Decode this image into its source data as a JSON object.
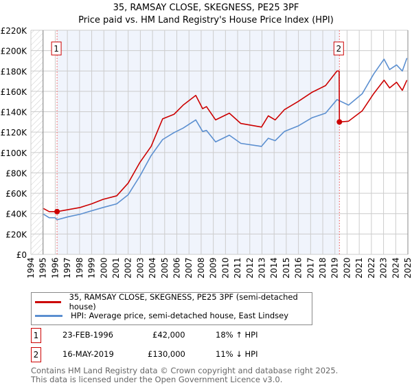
{
  "title": "35, RAMSAY CLOSE, SKEGNESS, PE25 3PF",
  "subtitle": "Price paid vs. HM Land Registry's House Price Index (HPI)",
  "chart_data": {
    "type": "line",
    "title": "35, RAMSAY CLOSE, SKEGNESS, PE25 3PF",
    "subtitle": "Price paid vs. HM Land Registry's House Price Index (HPI)",
    "xlim": [
      1994,
      2025
    ],
    "ylim": [
      0,
      220000
    ],
    "x_ticks": [
      "1994",
      "1995",
      "1996",
      "1997",
      "1998",
      "1999",
      "2000",
      "2001",
      "2002",
      "2003",
      "2004",
      "2005",
      "2006",
      "2007",
      "2008",
      "2009",
      "2010",
      "2011",
      "2012",
      "2013",
      "2014",
      "2015",
      "2016",
      "2017",
      "2018",
      "2019",
      "2020",
      "2021",
      "2022",
      "2023",
      "2024",
      "2025"
    ],
    "y_ticks": [
      {
        "value": 0,
        "label": "£0"
      },
      {
        "value": 20000,
        "label": "£20K"
      },
      {
        "value": 40000,
        "label": "£40K"
      },
      {
        "value": 60000,
        "label": "£60K"
      },
      {
        "value": 80000,
        "label": "£80K"
      },
      {
        "value": 100000,
        "label": "£100K"
      },
      {
        "value": 120000,
        "label": "£120K"
      },
      {
        "value": 140000,
        "label": "£140K"
      },
      {
        "value": 160000,
        "label": "£160K"
      },
      {
        "value": 180000,
        "label": "£180K"
      },
      {
        "value": 200000,
        "label": "£200K"
      },
      {
        "value": 220000,
        "label": "£220K"
      }
    ],
    "grid": true,
    "series": [
      {
        "name": "35, RAMSAY CLOSE, SKEGNESS, PE25 3PF (semi-detached house)",
        "color": "#cc0000",
        "x": [
          1995.04,
          1995.5,
          1996.15,
          1997.1,
          1998.05,
          1998.99,
          1999.93,
          2001.06,
          2002.0,
          2002.95,
          2003.89,
          2004.83,
          2005.77,
          2006.52,
          2007.56,
          2008.12,
          2008.44,
          2009.19,
          2010.32,
          2011.26,
          2012.96,
          2013.52,
          2014.09,
          2014.84,
          2015.97,
          2017.1,
          2018.23,
          2019.17,
          2019.35,
          2019.37,
          2020.12,
          2021.25,
          2022.19,
          2023.04,
          2023.5,
          2024.07,
          2024.54,
          2024.92
        ],
        "y": [
          45000,
          42000,
          42000,
          44000,
          46000,
          49600,
          54000,
          57500,
          70000,
          90000,
          106000,
          133000,
          137500,
          146500,
          156000,
          143000,
          145000,
          132000,
          138600,
          128500,
          125000,
          136000,
          132000,
          142000,
          150000,
          159000,
          165700,
          180000,
          180000,
          130000,
          130700,
          141000,
          157800,
          171000,
          163400,
          169000,
          161000,
          171000
        ]
      },
      {
        "name": "HPI: Average price, semi-detached house, East Lindsey",
        "color": "#5b8fd0",
        "x": [
          1995.04,
          1995.5,
          1995.98,
          1996.15,
          1997.1,
          1998.05,
          1998.99,
          1999.93,
          2001.06,
          2002.0,
          2002.95,
          2003.89,
          2004.83,
          2005.77,
          2006.52,
          2007.56,
          2008.12,
          2008.44,
          2009.19,
          2010.32,
          2011.26,
          2012.96,
          2013.52,
          2014.09,
          2014.84,
          2015.97,
          2017.1,
          2018.23,
          2019.17,
          2020.12,
          2021.25,
          2022.19,
          2023.04,
          2023.5,
          2024.07,
          2024.54,
          2024.92
        ],
        "y": [
          39400,
          36000,
          36000,
          34000,
          37000,
          39400,
          42800,
          46000,
          49600,
          58600,
          76600,
          97000,
          112700,
          119500,
          124000,
          132000,
          120600,
          121700,
          110400,
          117000,
          109000,
          106000,
          114000,
          111600,
          120600,
          126000,
          134000,
          138600,
          152000,
          146500,
          157800,
          177000,
          191600,
          181400,
          186000,
          180000,
          192700
        ]
      }
    ],
    "annotations": [
      {
        "label": "1",
        "x": 1996.15,
        "y": 42000
      },
      {
        "label": "2",
        "x": 2019.37,
        "y": 130000
      }
    ],
    "legend_placement": "bottom"
  },
  "legend": {
    "property_label": "35, RAMSAY CLOSE, SKEGNESS, PE25 3PF (semi-detached house)",
    "hpi_label": "HPI: Average price, semi-detached house, East Lindsey"
  },
  "sales": [
    {
      "num": "1",
      "date": "23-FEB-1996",
      "price": "£42,000",
      "hpi": "18% ↑ HPI"
    },
    {
      "num": "2",
      "date": "16-MAY-2019",
      "price": "£130,000",
      "hpi": "11% ↓ HPI"
    }
  ],
  "footer": {
    "line1": "Contains HM Land Registry data © Crown copyright and database right 2025.",
    "line2": "This data is licensed under the Open Government Licence v3.0."
  },
  "colors": {
    "property": "#cc0000",
    "hpi": "#5b8fd0",
    "shade": "#f0f4fc",
    "grid": "#cccccc"
  }
}
